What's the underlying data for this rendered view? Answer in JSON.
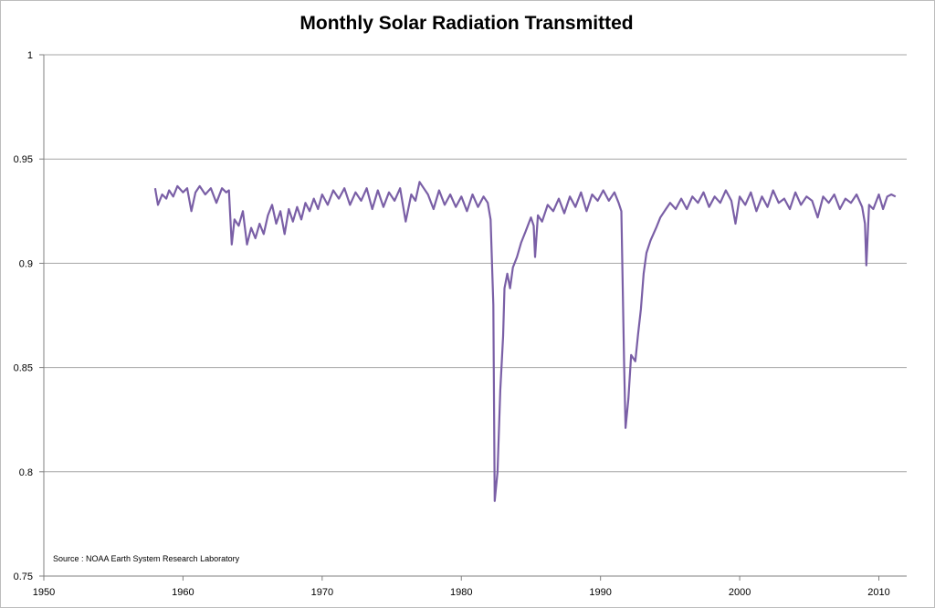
{
  "chart_data": {
    "type": "line",
    "title": "Monthly Solar Radiation Transmitted",
    "xlabel": "",
    "ylabel": "",
    "xlim": [
      1950,
      2012
    ],
    "ylim": [
      0.75,
      1
    ],
    "x_ticks": [
      1950,
      1960,
      1970,
      1980,
      1990,
      2000,
      2010
    ],
    "y_ticks": [
      0.75,
      0.8,
      0.85,
      0.9,
      0.95,
      1
    ],
    "x_tick_labels": [
      "1950",
      "1960",
      "1970",
      "1980",
      "1990",
      "2000",
      "2010"
    ],
    "y_tick_labels": [
      "0.75",
      "0.8",
      "0.85",
      "0.9",
      "0.95",
      "1"
    ],
    "grid": "horizontal",
    "annotation": "Source : NOAA Earth System Research Laboratory",
    "series": [
      {
        "color": "#7a5fa6",
        "points": [
          [
            1958.0,
            0.936
          ],
          [
            1958.2,
            0.928
          ],
          [
            1958.5,
            0.933
          ],
          [
            1958.8,
            0.931
          ],
          [
            1959.0,
            0.935
          ],
          [
            1959.3,
            0.932
          ],
          [
            1959.6,
            0.937
          ],
          [
            1960.0,
            0.934
          ],
          [
            1960.3,
            0.936
          ],
          [
            1960.6,
            0.925
          ],
          [
            1960.9,
            0.934
          ],
          [
            1961.2,
            0.937
          ],
          [
            1961.6,
            0.933
          ],
          [
            1962.0,
            0.936
          ],
          [
            1962.4,
            0.929
          ],
          [
            1962.8,
            0.936
          ],
          [
            1963.1,
            0.934
          ],
          [
            1963.3,
            0.935
          ],
          [
            1963.5,
            0.909
          ],
          [
            1963.7,
            0.921
          ],
          [
            1964.0,
            0.918
          ],
          [
            1964.3,
            0.925
          ],
          [
            1964.6,
            0.909
          ],
          [
            1964.9,
            0.917
          ],
          [
            1965.2,
            0.912
          ],
          [
            1965.5,
            0.919
          ],
          [
            1965.8,
            0.914
          ],
          [
            1966.1,
            0.923
          ],
          [
            1966.4,
            0.928
          ],
          [
            1966.7,
            0.919
          ],
          [
            1967.0,
            0.925
          ],
          [
            1967.3,
            0.914
          ],
          [
            1967.6,
            0.926
          ],
          [
            1967.9,
            0.92
          ],
          [
            1968.2,
            0.927
          ],
          [
            1968.5,
            0.921
          ],
          [
            1968.8,
            0.929
          ],
          [
            1969.1,
            0.925
          ],
          [
            1969.4,
            0.931
          ],
          [
            1969.7,
            0.926
          ],
          [
            1970.0,
            0.933
          ],
          [
            1970.4,
            0.928
          ],
          [
            1970.8,
            0.935
          ],
          [
            1971.2,
            0.931
          ],
          [
            1971.6,
            0.936
          ],
          [
            1972.0,
            0.928
          ],
          [
            1972.4,
            0.934
          ],
          [
            1972.8,
            0.93
          ],
          [
            1973.2,
            0.936
          ],
          [
            1973.6,
            0.926
          ],
          [
            1974.0,
            0.935
          ],
          [
            1974.4,
            0.927
          ],
          [
            1974.8,
            0.934
          ],
          [
            1975.2,
            0.93
          ],
          [
            1975.6,
            0.936
          ],
          [
            1976.0,
            0.92
          ],
          [
            1976.4,
            0.933
          ],
          [
            1976.7,
            0.93
          ],
          [
            1977.0,
            0.939
          ],
          [
            1977.3,
            0.936
          ],
          [
            1977.6,
            0.933
          ],
          [
            1978.0,
            0.926
          ],
          [
            1978.4,
            0.935
          ],
          [
            1978.8,
            0.928
          ],
          [
            1979.2,
            0.933
          ],
          [
            1979.6,
            0.927
          ],
          [
            1980.0,
            0.932
          ],
          [
            1980.4,
            0.925
          ],
          [
            1980.8,
            0.933
          ],
          [
            1981.2,
            0.927
          ],
          [
            1981.6,
            0.932
          ],
          [
            1981.9,
            0.929
          ],
          [
            1982.1,
            0.921
          ],
          [
            1982.3,
            0.88
          ],
          [
            1982.4,
            0.786
          ],
          [
            1982.6,
            0.8
          ],
          [
            1982.8,
            0.839
          ],
          [
            1983.0,
            0.865
          ],
          [
            1983.1,
            0.888
          ],
          [
            1983.3,
            0.895
          ],
          [
            1983.5,
            0.888
          ],
          [
            1983.7,
            0.898
          ],
          [
            1984.0,
            0.903
          ],
          [
            1984.3,
            0.91
          ],
          [
            1984.6,
            0.915
          ],
          [
            1985.0,
            0.922
          ],
          [
            1985.2,
            0.918
          ],
          [
            1985.3,
            0.903
          ],
          [
            1985.5,
            0.923
          ],
          [
            1985.8,
            0.92
          ],
          [
            1986.2,
            0.928
          ],
          [
            1986.6,
            0.925
          ],
          [
            1987.0,
            0.931
          ],
          [
            1987.4,
            0.924
          ],
          [
            1987.8,
            0.932
          ],
          [
            1988.2,
            0.927
          ],
          [
            1988.6,
            0.934
          ],
          [
            1989.0,
            0.925
          ],
          [
            1989.4,
            0.933
          ],
          [
            1989.8,
            0.93
          ],
          [
            1990.2,
            0.935
          ],
          [
            1990.6,
            0.93
          ],
          [
            1991.0,
            0.934
          ],
          [
            1991.3,
            0.929
          ],
          [
            1991.5,
            0.925
          ],
          [
            1991.7,
            0.85
          ],
          [
            1991.8,
            0.821
          ],
          [
            1992.0,
            0.835
          ],
          [
            1992.2,
            0.856
          ],
          [
            1992.5,
            0.853
          ],
          [
            1992.7,
            0.866
          ],
          [
            1992.9,
            0.878
          ],
          [
            1993.1,
            0.895
          ],
          [
            1993.3,
            0.905
          ],
          [
            1993.6,
            0.911
          ],
          [
            1994.0,
            0.917
          ],
          [
            1994.3,
            0.922
          ],
          [
            1994.7,
            0.926
          ],
          [
            1995.0,
            0.929
          ],
          [
            1995.4,
            0.926
          ],
          [
            1995.8,
            0.931
          ],
          [
            1996.2,
            0.926
          ],
          [
            1996.6,
            0.932
          ],
          [
            1997.0,
            0.929
          ],
          [
            1997.4,
            0.934
          ],
          [
            1997.8,
            0.927
          ],
          [
            1998.2,
            0.932
          ],
          [
            1998.6,
            0.929
          ],
          [
            1999.0,
            0.935
          ],
          [
            1999.4,
            0.93
          ],
          [
            1999.7,
            0.919
          ],
          [
            2000.0,
            0.932
          ],
          [
            2000.4,
            0.928
          ],
          [
            2000.8,
            0.934
          ],
          [
            2001.2,
            0.925
          ],
          [
            2001.6,
            0.932
          ],
          [
            2002.0,
            0.927
          ],
          [
            2002.4,
            0.935
          ],
          [
            2002.8,
            0.929
          ],
          [
            2003.2,
            0.931
          ],
          [
            2003.6,
            0.926
          ],
          [
            2004.0,
            0.934
          ],
          [
            2004.4,
            0.928
          ],
          [
            2004.8,
            0.932
          ],
          [
            2005.2,
            0.93
          ],
          [
            2005.6,
            0.922
          ],
          [
            2006.0,
            0.932
          ],
          [
            2006.4,
            0.929
          ],
          [
            2006.8,
            0.933
          ],
          [
            2007.2,
            0.926
          ],
          [
            2007.6,
            0.931
          ],
          [
            2008.0,
            0.929
          ],
          [
            2008.4,
            0.933
          ],
          [
            2008.8,
            0.927
          ],
          [
            2009.0,
            0.919
          ],
          [
            2009.1,
            0.899
          ],
          [
            2009.3,
            0.928
          ],
          [
            2009.6,
            0.926
          ],
          [
            2010.0,
            0.933
          ],
          [
            2010.3,
            0.926
          ],
          [
            2010.6,
            0.932
          ],
          [
            2010.9,
            0.933
          ],
          [
            2011.2,
            0.932
          ]
        ]
      }
    ]
  }
}
